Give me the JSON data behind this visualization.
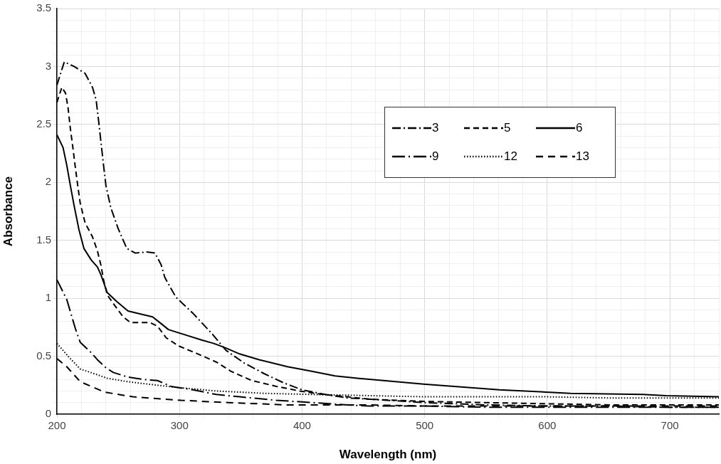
{
  "chart_data": {
    "type": "line",
    "xlabel": "Wavelength (nm)",
    "ylabel": "Absorbance",
    "xlim": [
      200,
      740
    ],
    "ylim": [
      0,
      3.5
    ],
    "xticks": [
      200,
      {
        "value": 220,
        "label": null
      },
      {
        "value": 240,
        "label": null
      },
      {
        "value": 260,
        "label": null
      },
      {
        "value": 280,
        "label": null
      },
      300,
      {
        "value": 320,
        "label": null
      },
      {
        "value": 340,
        "label": null
      },
      {
        "value": 360,
        "label": null
      },
      {
        "value": 380,
        "label": null
      },
      400,
      {
        "value": 420,
        "label": null
      },
      {
        "value": 440,
        "label": null
      },
      {
        "value": 460,
        "label": null
      },
      {
        "value": 480,
        "label": null
      },
      500,
      {
        "value": 520,
        "label": null
      },
      {
        "value": 540,
        "label": null
      },
      {
        "value": 560,
        "label": null
      },
      {
        "value": 580,
        "label": null
      },
      600,
      {
        "value": 620,
        "label": null
      },
      {
        "value": 640,
        "label": null
      },
      {
        "value": 660,
        "label": null
      },
      {
        "value": 680,
        "label": null
      },
      700,
      {
        "value": 720,
        "label": null
      },
      {
        "value": 740,
        "label": null
      }
    ],
    "yticks": [
      0,
      {
        "value": 0.1,
        "label": null
      },
      {
        "value": 0.2,
        "label": null
      },
      {
        "value": 0.3,
        "label": null
      },
      {
        "value": 0.4,
        "label": null
      },
      0.5,
      {
        "value": 0.6,
        "label": null
      },
      {
        "value": 0.7,
        "label": null
      },
      {
        "value": 0.8,
        "label": null
      },
      {
        "value": 0.9,
        "label": null
      },
      1,
      {
        "value": 1.1,
        "label": null
      },
      {
        "value": 1.2,
        "label": null
      },
      {
        "value": 1.3,
        "label": null
      },
      {
        "value": 1.4,
        "label": null
      },
      1.5,
      {
        "value": 1.6,
        "label": null
      },
      {
        "value": 1.7,
        "label": null
      },
      {
        "value": 1.8,
        "label": null
      },
      {
        "value": 1.9,
        "label": null
      },
      2,
      {
        "value": 2.1,
        "label": null
      },
      {
        "value": 2.2,
        "label": null
      },
      {
        "value": 2.3,
        "label": null
      },
      {
        "value": 2.4,
        "label": null
      },
      2.5,
      {
        "value": 2.6,
        "label": null
      },
      {
        "value": 2.7,
        "label": null
      },
      {
        "value": 2.8,
        "label": null
      },
      {
        "value": 2.9,
        "label": null
      },
      3,
      {
        "value": 3.1,
        "label": null
      },
      {
        "value": 3.2,
        "label": null
      },
      {
        "value": 3.3,
        "label": null
      },
      {
        "value": 3.4,
        "label": null
      },
      3.5
    ],
    "grid": true,
    "legend": "top right",
    "marker": "none",
    "series": [
      {
        "name": "3",
        "color": "#000000",
        "line_style": "dashed",
        "x": [
          200,
          206,
          214,
          223,
          229,
          232,
          234,
          236,
          238,
          240,
          244,
          250,
          257,
          264,
          273,
          280,
          285,
          288,
          297,
          311,
          326,
          338,
          353,
          369,
          385,
          400,
          419,
          437,
          454,
          500,
          550,
          600,
          650,
          700,
          740
        ],
        "values": [
          2.84,
          3.04,
          3.0,
          2.94,
          2.82,
          2.71,
          2.53,
          2.34,
          2.15,
          1.97,
          1.78,
          1.6,
          1.43,
          1.39,
          1.4,
          1.39,
          1.29,
          1.18,
          1.01,
          0.87,
          0.7,
          0.55,
          0.44,
          0.35,
          0.27,
          0.21,
          0.17,
          0.14,
          0.13,
          0.1,
          0.08,
          0.07,
          0.07,
          0.06,
          0.06
        ]
      },
      {
        "name": "5",
        "color": "#000000",
        "line_style": "dashed",
        "x": [
          200,
          204,
          207,
          209,
          211,
          213,
          215,
          217,
          219,
          223,
          229,
          233,
          236,
          238,
          241,
          247,
          254,
          260,
          276,
          282,
          289,
          299,
          315,
          330,
          342,
          359,
          379,
          398,
          417,
          437,
          454,
          500,
          550,
          600,
          650,
          700,
          740
        ],
        "values": [
          2.69,
          2.82,
          2.77,
          2.65,
          2.46,
          2.3,
          2.13,
          1.97,
          1.82,
          1.65,
          1.53,
          1.41,
          1.28,
          1.16,
          1.03,
          0.94,
          0.84,
          0.79,
          0.79,
          0.76,
          0.66,
          0.59,
          0.52,
          0.45,
          0.37,
          0.29,
          0.24,
          0.2,
          0.17,
          0.15,
          0.13,
          0.11,
          0.1,
          0.09,
          0.08,
          0.08,
          0.08
        ]
      },
      {
        "name": "6",
        "color": "#000000",
        "line_style": "solid",
        "x": [
          200,
          205,
          208,
          211,
          214,
          218,
          222,
          228,
          233,
          236,
          241,
          249,
          258,
          270,
          278,
          284,
          291,
          303,
          318,
          328,
          338,
          349,
          365,
          388,
          408,
          427,
          445,
          499,
          561,
          619,
          678,
          697,
          740
        ],
        "values": [
          2.41,
          2.3,
          2.15,
          1.97,
          1.8,
          1.59,
          1.43,
          1.33,
          1.27,
          1.2,
          1.05,
          0.97,
          0.89,
          0.86,
          0.84,
          0.79,
          0.73,
          0.69,
          0.64,
          0.61,
          0.57,
          0.52,
          0.47,
          0.41,
          0.37,
          0.33,
          0.31,
          0.26,
          0.21,
          0.18,
          0.17,
          0.16,
          0.15
        ]
      },
      {
        "name": "9",
        "color": "#000000",
        "line_style": "dashed",
        "x": [
          200,
          208,
          215,
          219,
          228,
          233,
          240,
          246,
          258,
          270,
          282,
          293,
          311,
          330,
          349,
          379,
          408,
          437,
          454,
          500,
          550,
          600,
          650,
          700,
          740
        ],
        "values": [
          1.16,
          0.99,
          0.74,
          0.62,
          0.53,
          0.47,
          0.4,
          0.36,
          0.32,
          0.3,
          0.29,
          0.24,
          0.21,
          0.17,
          0.15,
          0.12,
          0.1,
          0.08,
          0.07,
          0.07,
          0.06,
          0.06,
          0.06,
          0.06,
          0.06
        ]
      },
      {
        "name": "12",
        "color": "#000000",
        "line_style": "dotted",
        "x": [
          200,
          210,
          219,
          233,
          241,
          258,
          282,
          299,
          330,
          369,
          408,
          455,
          500,
          550,
          600,
          650,
          700,
          740
        ],
        "values": [
          0.61,
          0.49,
          0.39,
          0.34,
          0.31,
          0.28,
          0.25,
          0.23,
          0.2,
          0.18,
          0.17,
          0.16,
          0.15,
          0.15,
          0.15,
          0.14,
          0.14,
          0.14
        ]
      },
      {
        "name": "13",
        "color": "#000000",
        "line_style": "dashed",
        "x": [
          200,
          208,
          219,
          239,
          262,
          301,
          340,
          388,
          454,
          500,
          550,
          600,
          650,
          700,
          740
        ],
        "values": [
          0.48,
          0.41,
          0.28,
          0.19,
          0.15,
          0.12,
          0.1,
          0.08,
          0.08,
          0.07,
          0.07,
          0.07,
          0.07,
          0.07,
          0.07
        ]
      }
    ]
  }
}
